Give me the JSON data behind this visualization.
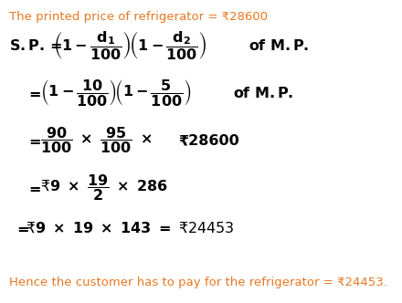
{
  "bg_color": "#ffffff",
  "orange_color": "#E87722",
  "black_color": "#000000",
  "figsize": [
    4.4,
    3.32
  ],
  "dpi": 100,
  "line1": "The printed price of refrigerator = ₹28600",
  "line_conclusion": "Hence the customer has to pay for the refrigerator = ₹24453."
}
